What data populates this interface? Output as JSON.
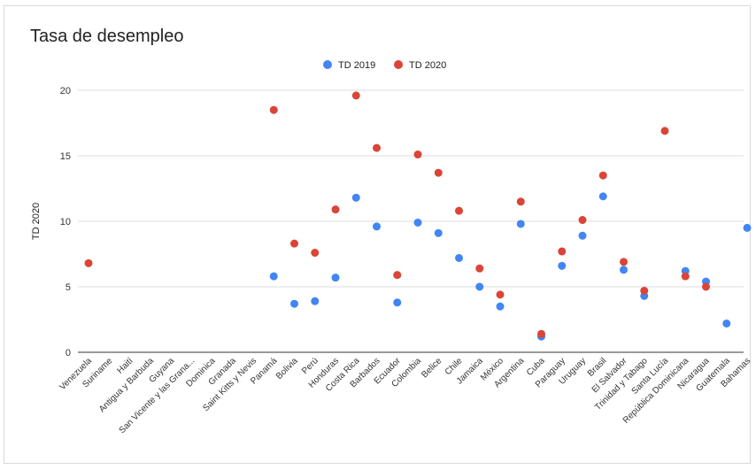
{
  "chart_data": {
    "type": "scatter",
    "title": "Tasa de desempleo",
    "ylabel": "TD 2020",
    "xlabel": "",
    "ylim": [
      0,
      20
    ],
    "yticks": [
      0,
      5,
      10,
      15,
      20
    ],
    "grid": true,
    "legend_position": "top-center",
    "categories": [
      "Venezuela",
      "Suriname",
      "Haití",
      "Antigua y Barbuda",
      "Guyana",
      "San Vicente y las Grana...",
      "Dominica",
      "Granada",
      "Saint Kitts y Nevis",
      "Panamá",
      "Bolivia",
      "Perú",
      "Honduras",
      "Costa Rica",
      "Barbados",
      "Ecuador",
      "Colombia",
      "Belice",
      "Chile",
      "Jamaica",
      "México",
      "Argentina",
      "Cuba",
      "Paraguay",
      "Uruguay",
      "Brasil",
      "El Salvador",
      "Trinidad y Tabago",
      "Santa Lucía",
      "República Dominicana",
      "Nicaragua",
      "Guatemala",
      "Bahamas"
    ],
    "series": [
      {
        "name": "TD 2019",
        "color": "#4285f4",
        "values": [
          null,
          null,
          null,
          null,
          null,
          null,
          null,
          null,
          null,
          5.8,
          3.7,
          3.9,
          5.7,
          11.8,
          9.6,
          3.8,
          9.9,
          9.1,
          7.2,
          5.0,
          3.5,
          9.8,
          1.2,
          6.6,
          8.9,
          11.9,
          6.3,
          4.3,
          null,
          6.2,
          5.4,
          2.2,
          9.5
        ]
      },
      {
        "name": "TD 2020",
        "color": "#db4437",
        "values": [
          6.8,
          null,
          null,
          null,
          null,
          null,
          null,
          null,
          null,
          18.5,
          8.3,
          7.6,
          10.9,
          19.6,
          15.6,
          5.9,
          15.1,
          13.7,
          10.8,
          6.4,
          4.4,
          11.5,
          1.4,
          7.7,
          10.1,
          13.5,
          6.9,
          4.7,
          16.9,
          5.8,
          5.0,
          null,
          null
        ]
      }
    ]
  }
}
